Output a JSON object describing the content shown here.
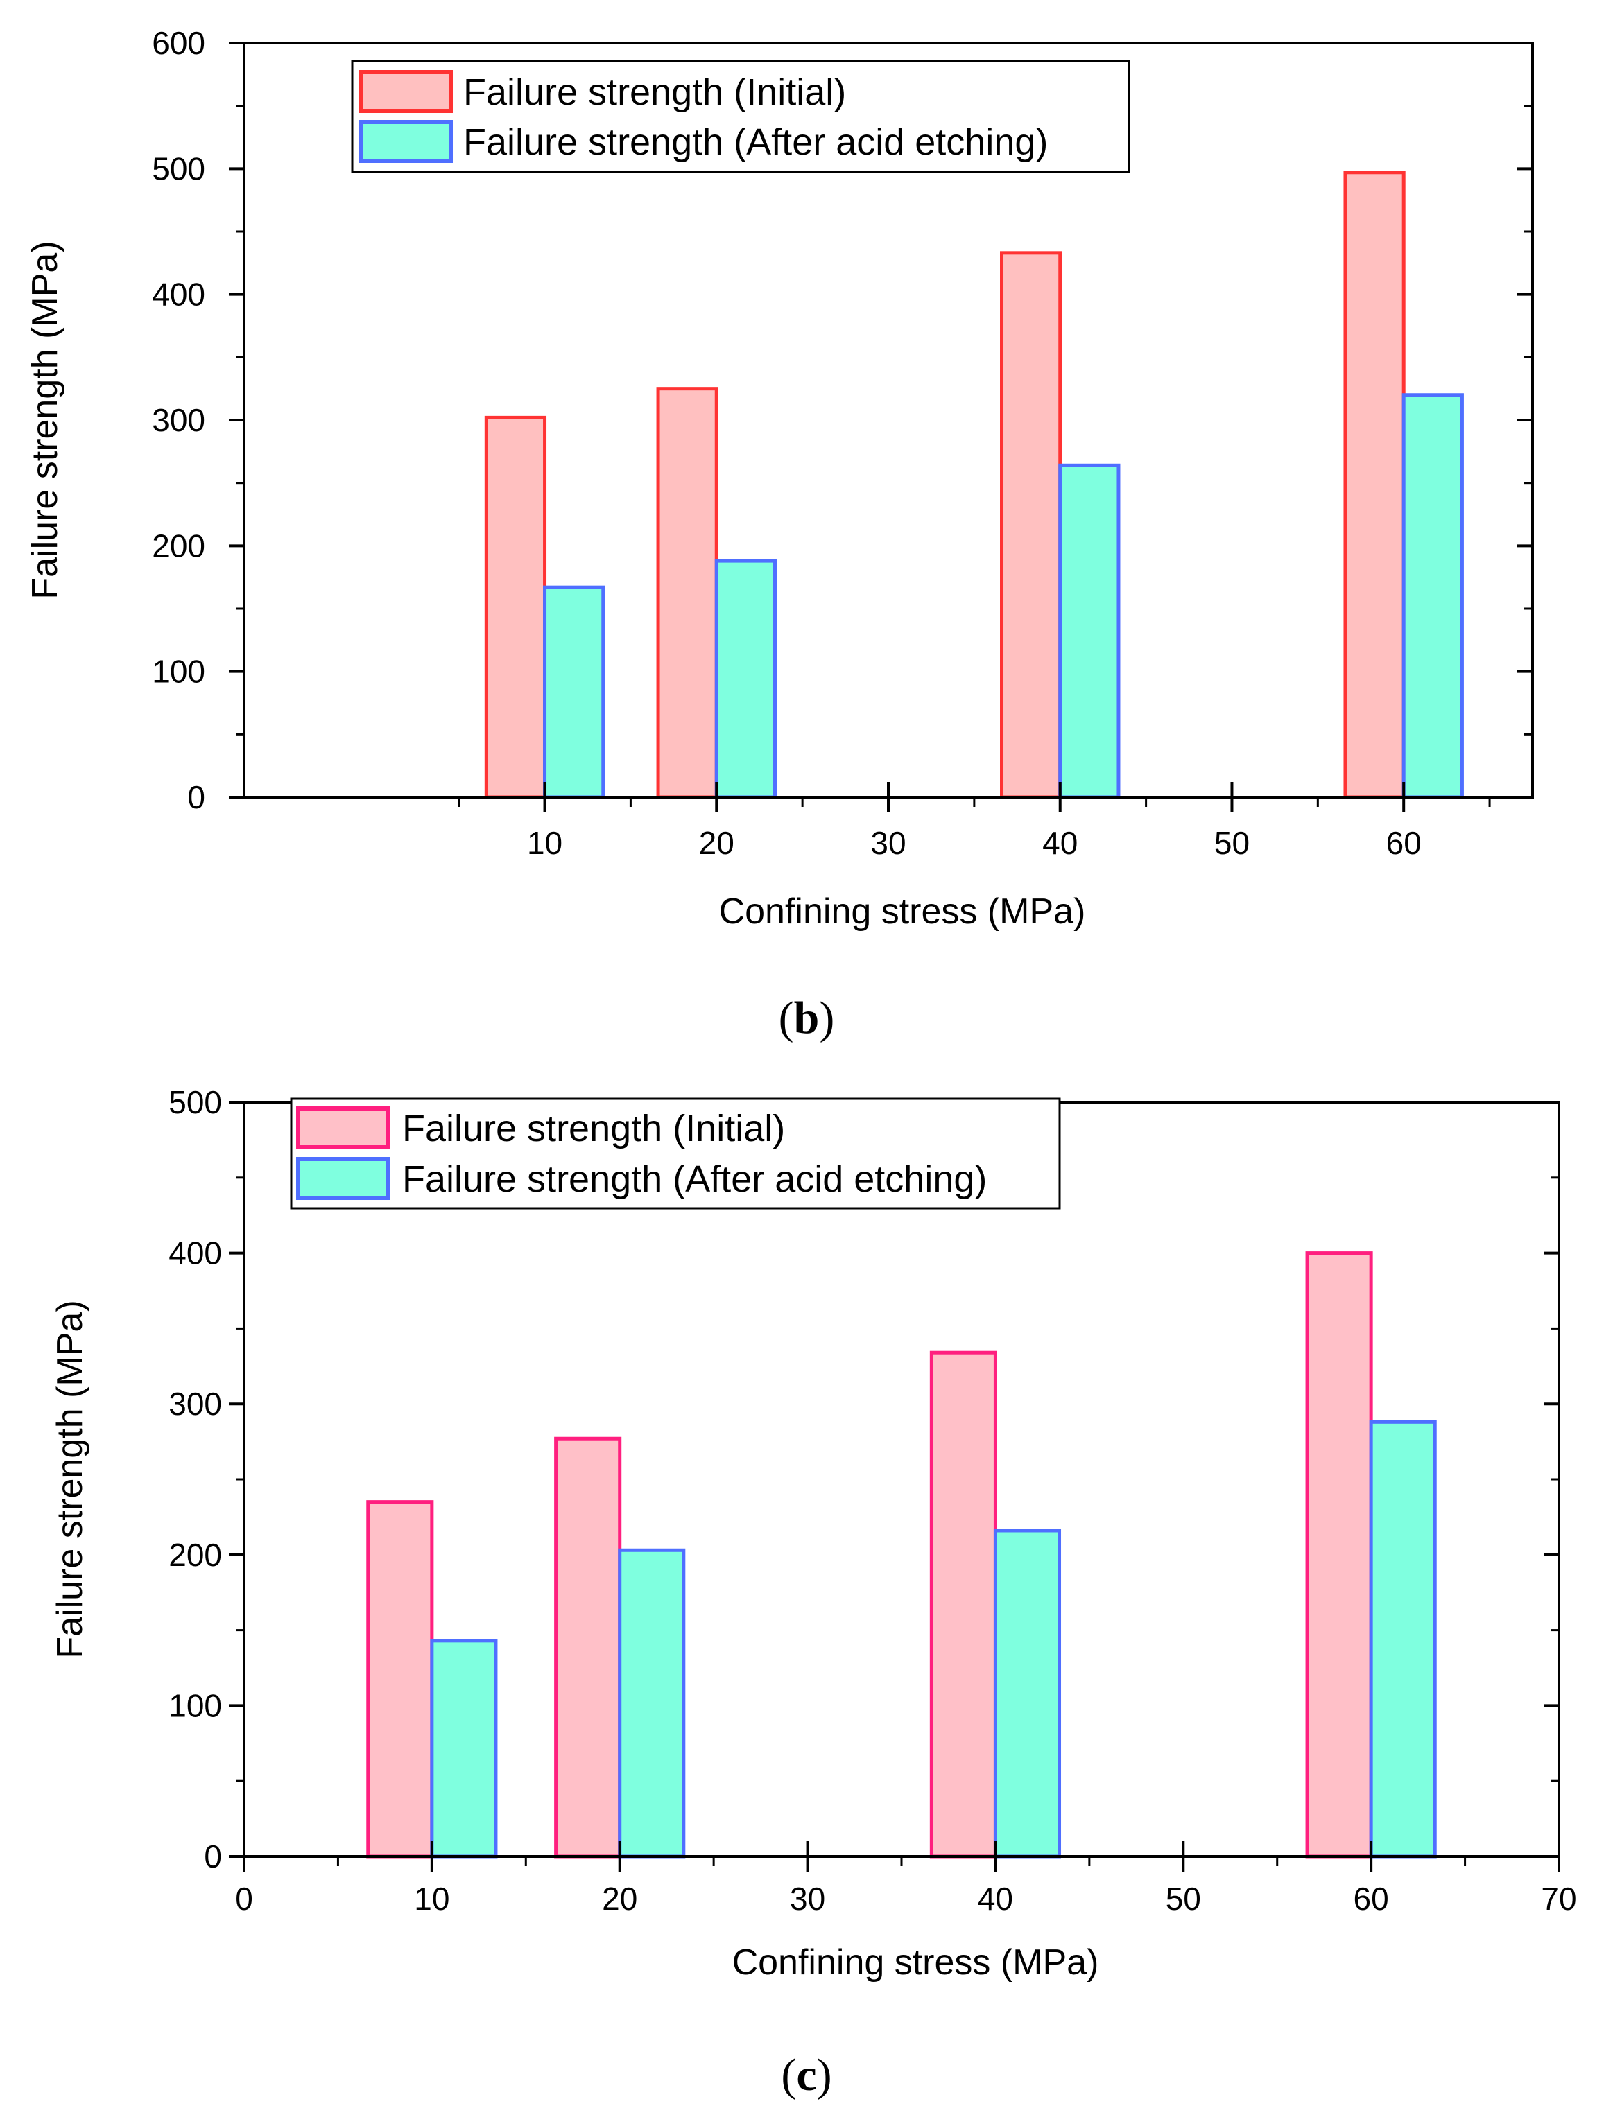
{
  "chart_data": [
    {
      "id": "b",
      "type": "bar",
      "panel_label": "b",
      "xlabel": "Confining stress (MPa)",
      "ylabel": "Failure strength (MPa)",
      "xlim": [
        -7.5,
        67.5
      ],
      "ylim": [
        0,
        600
      ],
      "x_ticks": [
        10,
        20,
        30,
        40,
        50,
        60
      ],
      "x_minor": [
        5,
        15,
        25,
        35,
        45,
        55,
        65
      ],
      "y_ticks": [
        0,
        100,
        200,
        300,
        400,
        500,
        600
      ],
      "categories": [
        10,
        20,
        40,
        60
      ],
      "bar_width": 3.4,
      "series": [
        {
          "name": "Failure strength (Initial)",
          "values": [
            302,
            325,
            433,
            497
          ],
          "fill": "#ffc0c0",
          "stroke": "#ff3333"
        },
        {
          "name": "Failure strength (After acid etching)",
          "values": [
            167,
            188,
            264,
            320
          ],
          "fill": "#7fffdf",
          "stroke": "#4f6fff"
        }
      ],
      "legend_position": "top-left"
    },
    {
      "id": "c",
      "type": "bar",
      "panel_label": "c",
      "xlabel": "Confining stress (MPa)",
      "ylabel": "Failure strength (MPa)",
      "xlim": [
        0,
        70
      ],
      "ylim": [
        0,
        500
      ],
      "x_ticks": [
        0,
        10,
        20,
        30,
        40,
        50,
        60,
        70
      ],
      "x_minor": [
        5,
        15,
        25,
        35,
        45,
        55,
        65
      ],
      "y_ticks": [
        0,
        100,
        200,
        300,
        400,
        500
      ],
      "categories": [
        10,
        20,
        40,
        60
      ],
      "bar_width": 3.4,
      "series": [
        {
          "name": "Failure strength (Initial)",
          "values": [
            235,
            277,
            334,
            400
          ],
          "fill": "#ffc0c8",
          "stroke": "#ff1f7f"
        },
        {
          "name": "Failure strength (After acid etching)",
          "values": [
            143,
            203,
            216,
            288
          ],
          "fill": "#7fffdf",
          "stroke": "#4f6fff"
        }
      ],
      "legend_position": "top-left"
    }
  ]
}
